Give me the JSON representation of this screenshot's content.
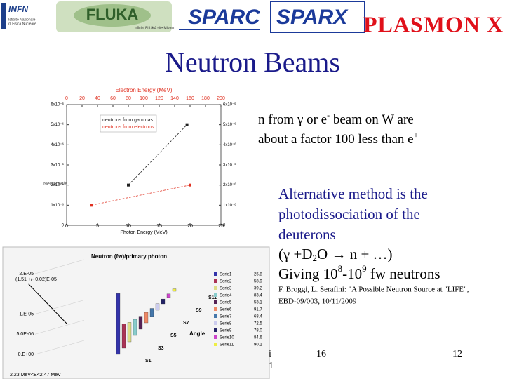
{
  "header": {
    "logos": {
      "infn": "INFN",
      "infn_sub": [
        "Istituto Nazionale",
        "di Fisica Nucleare"
      ],
      "fluka": "FLUKA",
      "fluka_sub": "official FLUKA site Milano",
      "sparc": "SPARC",
      "sparx": "SPARX",
      "plasmon": "PLASMON X"
    },
    "title": "Neutron Beams"
  },
  "figure1": {
    "type": "scatter",
    "top_axis_label": "Electron Energy (MeV)",
    "x_label": "Photon Energy (MeV)",
    "y_label": "Neutrons/e",
    "xlim": [
      0,
      25
    ],
    "xticks": [
      0,
      5,
      10,
      15,
      20,
      25
    ],
    "x2lim": [
      0,
      200
    ],
    "x2ticks": [
      0,
      20,
      40,
      60,
      80,
      100,
      120,
      140,
      160,
      180,
      200
    ],
    "ylim": [
      0,
      6e-06
    ],
    "yticks": [
      {
        "value": 0,
        "label": "0"
      },
      {
        "value": 1e-06,
        "label": "1x10⁻⁶"
      },
      {
        "value": 2e-06,
        "label": "2x10⁻⁶"
      },
      {
        "value": 3e-06,
        "label": "3x10⁻⁶"
      },
      {
        "value": 4e-06,
        "label": "4x10⁻⁶"
      },
      {
        "value": 5e-06,
        "label": "5x10⁻⁶"
      },
      {
        "value": 6e-06,
        "label": "6x10⁻⁶"
      }
    ],
    "series": [
      {
        "name": "neutrons from gammas",
        "color": "#222222",
        "x": [
          10,
          19.5
        ],
        "values": [
          2e-06,
          5e-06
        ]
      },
      {
        "name": "neutrons from electrons",
        "color": "#e03020",
        "x": [
          4,
          20
        ],
        "values": [
          1e-06,
          2e-06
        ]
      }
    ]
  },
  "figure2": {
    "type": "bar3d",
    "title": "Neutron (fw)/primary photon",
    "annotation": "(1.51 +/- 0.02)E-05",
    "energy_range": "2.23 MeV<E<2.47 MeV",
    "depth_label": "Angle",
    "ylim": [
      0,
      2e-05
    ],
    "yticks": [
      {
        "value": 0,
        "label": "0.E+00"
      },
      {
        "value": 5e-06,
        "label": "5.0E-06"
      },
      {
        "value": 1e-05,
        "label": "1.E-05"
      },
      {
        "value": 2e-05,
        "label": "2.E-05"
      }
    ],
    "depth_categories": [
      "S1",
      "S3",
      "S5",
      "S7",
      "S9",
      "S11"
    ],
    "series": [
      {
        "name": "Serie1",
        "color": "#3333aa",
        "values": [
          1.51e-05
        ]
      },
      {
        "name": "Serie2",
        "color": "#aa3355",
        "values": [
          6e-06
        ]
      },
      {
        "name": "Serie3",
        "color": "#dddd88",
        "values": [
          4.8e-06
        ]
      },
      {
        "name": "Serie4",
        "color": "#88cccc",
        "values": [
          4e-06
        ]
      },
      {
        "name": "Serie5",
        "color": "#552255",
        "values": [
          3.2e-06
        ]
      },
      {
        "name": "Serie6",
        "color": "#ee8866",
        "values": [
          2.6e-06
        ]
      },
      {
        "name": "Serie7",
        "color": "#4477aa",
        "values": [
          2e-06
        ]
      },
      {
        "name": "Serie8",
        "color": "#ccccee",
        "values": [
          1.6e-06
        ]
      },
      {
        "name": "Serie9",
        "color": "#222266",
        "values": [
          1.2e-06
        ]
      },
      {
        "name": "Serie10",
        "color": "#cc44cc",
        "values": [
          9e-07
        ]
      },
      {
        "name": "Serie11",
        "color": "#eeee44",
        "values": [
          6e-07
        ]
      }
    ],
    "side_numbers": [
      "25.8",
      "58.9",
      "39.2",
      "83.4",
      "53.1",
      "91.7",
      "68.4",
      "72.5",
      "78.0",
      "84.6",
      "90.1"
    ]
  },
  "body": {
    "point1": [
      "n from ",
      "γ",
      " or e",
      "-",
      " beam on W are",
      "about a factor 100 less than e",
      "+"
    ],
    "point2": [
      "Alternative method is the",
      "photodissociation of the",
      "deuterons"
    ],
    "reaction": [
      "(",
      "γ",
      " +D",
      "2",
      "O ",
      "→",
      " n + …)"
    ],
    "giving": [
      "Giving 10",
      "8",
      "-10",
      "9",
      " fw neutrons"
    ],
    "citation": [
      "F. Broggi, L. Serafini: \"A Possible Neutron Source at \"LIFE\",",
      "EBD-09/003, 10/11/2009"
    ]
  },
  "footer": {
    "left": [
      "i",
      "1"
    ],
    "middle": "16",
    "right": "12"
  }
}
